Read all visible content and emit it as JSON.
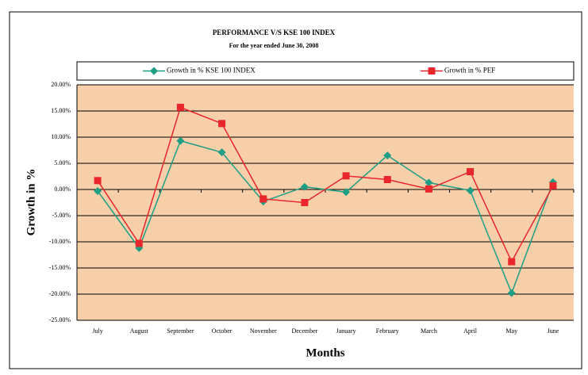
{
  "chart_data": {
    "type": "line",
    "title": "PERFORMANCE V/S KSE 100 INDEX",
    "subtitle": "For the year ended June 30, 2008",
    "xlabel": "Months",
    "ylabel": "Growth in %",
    "categories": [
      "July",
      "August",
      "September",
      "October",
      "November",
      "December",
      "January",
      "February",
      "March",
      "April",
      "May",
      "June"
    ],
    "series": [
      {
        "name": "Growth in % KSE 100 INDEX",
        "color": "#1f9e86",
        "marker": "diamond",
        "values": [
          -0.3,
          -11.2,
          9.3,
          7.1,
          -2.3,
          0.5,
          -0.5,
          6.5,
          1.3,
          -0.2,
          -19.8,
          1.4
        ]
      },
      {
        "name": "Growth in % PEF",
        "color": "#e8262b",
        "marker": "square",
        "values": [
          1.7,
          -10.3,
          15.7,
          12.6,
          -1.8,
          -2.5,
          2.6,
          1.9,
          0.1,
          3.4,
          -13.8,
          0.7
        ]
      }
    ],
    "ylim": [
      -25,
      20
    ],
    "yticks": [
      {
        "value": -25,
        "label": "-25.00%"
      },
      {
        "value": -20,
        "label": "-20.00%"
      },
      {
        "value": -15,
        "label": "-15.00%"
      },
      {
        "value": -10,
        "label": "-10.00%"
      },
      {
        "value": -5,
        "label": "-5.00%"
      },
      {
        "value": 0,
        "label": "0.00%"
      },
      {
        "value": 5,
        "label": "5.00%"
      },
      {
        "value": 10,
        "label": "10.00%"
      },
      {
        "value": 15,
        "label": "15.00%"
      },
      {
        "value": 20,
        "label": "20.00%"
      }
    ],
    "grid": true,
    "background": "#f7cfa9",
    "legend": "top"
  }
}
